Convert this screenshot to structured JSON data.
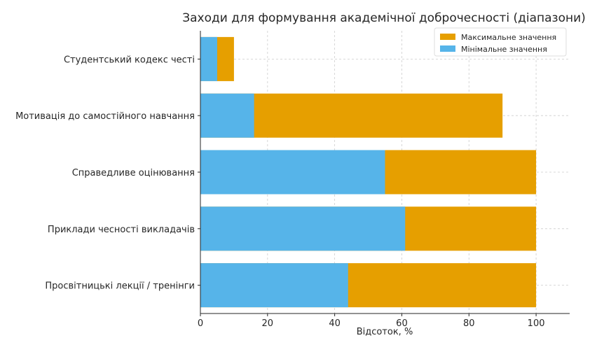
{
  "chart_data": {
    "type": "bar",
    "orientation": "horizontal",
    "stacking": "overlay",
    "title": "Заходи для формування академічної доброчесності (діапазони)",
    "xlabel": "Відсоток, %",
    "ylabel": "",
    "xlim": [
      0,
      110
    ],
    "xticks": [
      0,
      20,
      40,
      60,
      80,
      100
    ],
    "grid": true,
    "legend_position": "top-right",
    "categories": [
      "Студентський кодекс честі",
      "Мотивація до самостійного навчання",
      "Справедливе оцінювання",
      "Приклади чесності викладачів",
      "Просвітницькі лекції / тренінги"
    ],
    "series": [
      {
        "name": "Максимальне значення",
        "color": "#E69F00",
        "values": [
          10,
          90,
          100,
          100,
          100
        ]
      },
      {
        "name": "Мінімальне значення",
        "color": "#56B4E9",
        "values": [
          5,
          16,
          55,
          61,
          44
        ]
      }
    ]
  }
}
